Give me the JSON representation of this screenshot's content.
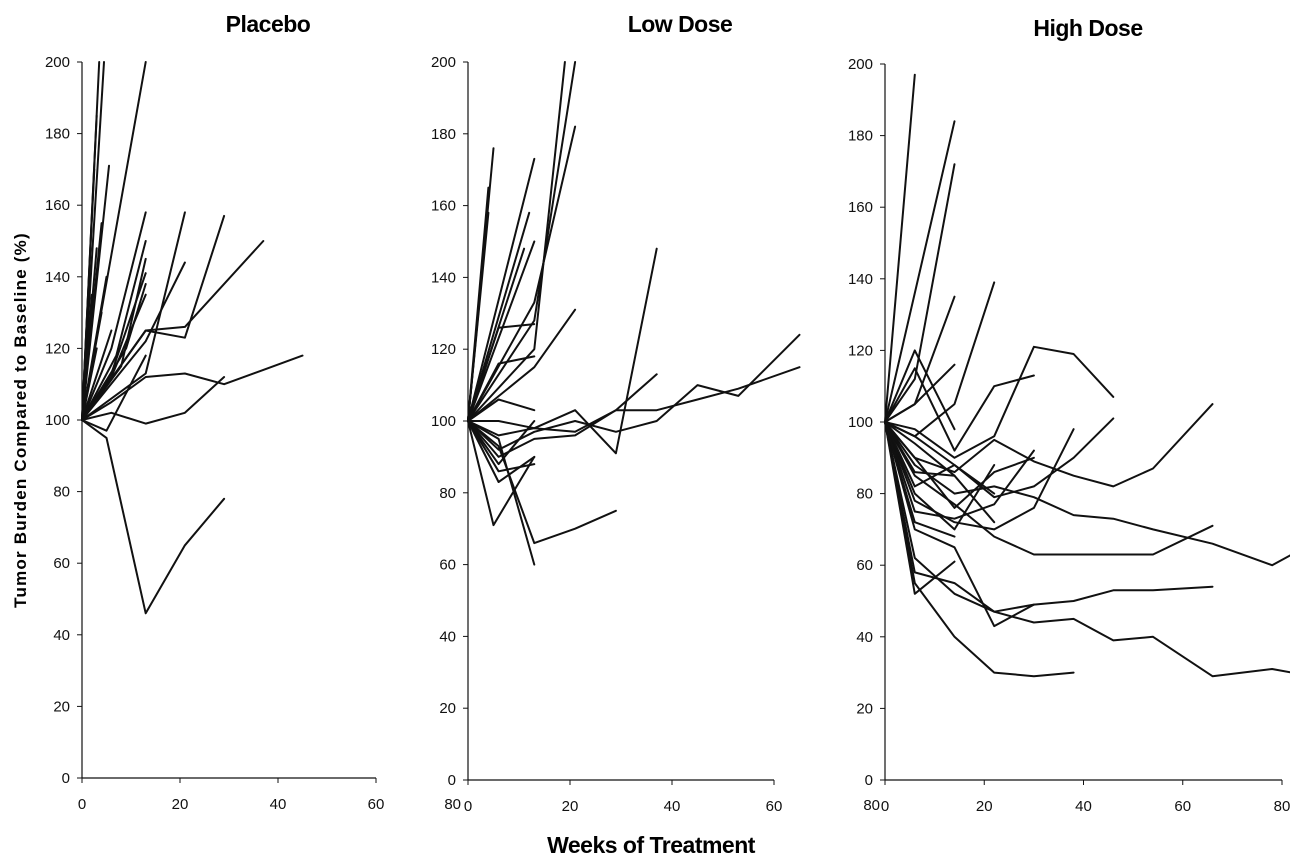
{
  "chart_data": [
    {
      "type": "line",
      "title": "Placebo",
      "ylabel": "Tumor Burden Compared to Baseline (%)",
      "xlim": [
        0,
        60
      ],
      "ylim": [
        0,
        200
      ],
      "x_ticks": [
        "0",
        "20",
        "40",
        "60"
      ],
      "y_ticks": [
        "0",
        "20",
        "40",
        "60",
        "80",
        "100",
        "120",
        "140",
        "160",
        "180",
        "200"
      ],
      "grid": false,
      "series": [
        {
          "x": [
            0,
            3.5
          ],
          "y": [
            100,
            200
          ]
        },
        {
          "x": [
            0,
            4.5
          ],
          "y": [
            100,
            200
          ]
        },
        {
          "x": [
            0,
            3
          ],
          "y": [
            100,
            185
          ]
        },
        {
          "x": [
            0,
            2.5
          ],
          "y": [
            100,
            170
          ]
        },
        {
          "x": [
            0,
            13
          ],
          "y": [
            100,
            200
          ]
        },
        {
          "x": [
            0,
            5.5
          ],
          "y": [
            100,
            171
          ]
        },
        {
          "x": [
            0,
            4
          ],
          "y": [
            100,
            155
          ]
        },
        {
          "x": [
            0,
            3
          ],
          "y": [
            100,
            148
          ]
        },
        {
          "x": [
            0,
            5
          ],
          "y": [
            100,
            140
          ]
        },
        {
          "x": [
            0,
            2
          ],
          "y": [
            100,
            135
          ]
        },
        {
          "x": [
            0,
            4
          ],
          "y": [
            100,
            130
          ]
        },
        {
          "x": [
            0,
            6
          ],
          "y": [
            100,
            125
          ]
        },
        {
          "x": [
            0,
            3
          ],
          "y": [
            100,
            120
          ]
        },
        {
          "x": [
            0,
            2
          ],
          "y": [
            100,
            115
          ]
        },
        {
          "x": [
            0,
            5
          ],
          "y": [
            100,
            110
          ]
        },
        {
          "x": [
            0,
            6,
            13
          ],
          "y": [
            100,
            120,
            158
          ]
        },
        {
          "x": [
            0,
            7,
            13
          ],
          "y": [
            100,
            118,
            150
          ]
        },
        {
          "x": [
            0,
            8,
            13
          ],
          "y": [
            100,
            115,
            145
          ]
        },
        {
          "x": [
            0,
            6,
            13
          ],
          "y": [
            100,
            113,
            141
          ]
        },
        {
          "x": [
            0,
            9,
            13
          ],
          "y": [
            100,
            120,
            138
          ]
        },
        {
          "x": [
            0,
            6,
            13
          ],
          "y": [
            100,
            112,
            135
          ]
        },
        {
          "x": [
            0,
            13,
            21
          ],
          "y": [
            100,
            113,
            158
          ]
        },
        {
          "x": [
            0,
            13,
            21
          ],
          "y": [
            100,
            122,
            144
          ]
        },
        {
          "x": [
            0,
            13,
            21,
            29
          ],
          "y": [
            100,
            125,
            123,
            157
          ]
        },
        {
          "x": [
            0,
            13,
            21,
            37
          ],
          "y": [
            100,
            125,
            126,
            150
          ]
        },
        {
          "x": [
            0,
            6,
            13,
            21,
            29,
            37,
            45
          ],
          "y": [
            100,
            105,
            112,
            113,
            110,
            114,
            118
          ]
        },
        {
          "x": [
            0,
            6,
            13,
            21,
            29
          ],
          "y": [
            100,
            102,
            99,
            102,
            112
          ]
        },
        {
          "x": [
            0,
            5,
            13,
            21,
            29
          ],
          "y": [
            100,
            95,
            46,
            65,
            78
          ]
        },
        {
          "x": [
            0,
            5,
            13
          ],
          "y": [
            100,
            97,
            118
          ]
        }
      ]
    },
    {
      "type": "line",
      "title": "Low Dose",
      "xlim": [
        0,
        60
      ],
      "ylim": [
        0,
        200
      ],
      "x_ticks": [
        "0",
        "20",
        "40",
        "60"
      ],
      "y_ticks": [
        "0",
        "20",
        "40",
        "60",
        "80",
        "100",
        "120",
        "140",
        "160",
        "180",
        "200"
      ],
      "grid": false,
      "series": [
        {
          "x": [
            0,
            5
          ],
          "y": [
            100,
            176
          ]
        },
        {
          "x": [
            0,
            4
          ],
          "y": [
            100,
            165
          ]
        },
        {
          "x": [
            0,
            4
          ],
          "y": [
            100,
            158
          ]
        },
        {
          "x": [
            0,
            3
          ],
          "y": [
            100,
            145
          ]
        },
        {
          "x": [
            0,
            2
          ],
          "y": [
            100,
            130
          ]
        },
        {
          "x": [
            0,
            13
          ],
          "y": [
            100,
            173
          ]
        },
        {
          "x": [
            0,
            12
          ],
          "y": [
            100,
            158
          ]
        },
        {
          "x": [
            0,
            11
          ],
          "y": [
            100,
            148
          ]
        },
        {
          "x": [
            0,
            13
          ],
          "y": [
            100,
            150
          ]
        },
        {
          "x": [
            0,
            13,
            19
          ],
          "y": [
            100,
            120,
            200
          ]
        },
        {
          "x": [
            0,
            13,
            21
          ],
          "y": [
            100,
            128,
            200
          ]
        },
        {
          "x": [
            0,
            13,
            21
          ],
          "y": [
            100,
            133,
            182
          ]
        },
        {
          "x": [
            0,
            6,
            13
          ],
          "y": [
            100,
            126,
            127
          ]
        },
        {
          "x": [
            0,
            6,
            13
          ],
          "y": [
            100,
            116,
            118
          ]
        },
        {
          "x": [
            0,
            13,
            21
          ],
          "y": [
            100,
            115,
            131
          ]
        },
        {
          "x": [
            0,
            6,
            13
          ],
          "y": [
            100,
            106,
            103
          ]
        },
        {
          "x": [
            0,
            6,
            13,
            21,
            29,
            37
          ],
          "y": [
            100,
            90,
            95,
            96,
            103,
            113
          ]
        },
        {
          "x": [
            0,
            6,
            13,
            21,
            29,
            37
          ],
          "y": [
            100,
            100,
            98,
            103,
            91,
            148
          ]
        },
        {
          "x": [
            0,
            6,
            13,
            21,
            29,
            37,
            45,
            53,
            65
          ],
          "y": [
            100,
            96,
            98,
            97,
            103,
            103,
            106,
            109,
            115
          ]
        },
        {
          "x": [
            0,
            6,
            13,
            21,
            29,
            37,
            45,
            53,
            65
          ],
          "y": [
            100,
            92,
            97,
            100,
            97,
            100,
            110,
            107,
            124
          ]
        },
        {
          "x": [
            0,
            6,
            13
          ],
          "y": [
            100,
            88,
            100
          ]
        },
        {
          "x": [
            0,
            6,
            13
          ],
          "y": [
            100,
            86,
            88
          ]
        },
        {
          "x": [
            0,
            6,
            13
          ],
          "y": [
            100,
            83,
            90
          ]
        },
        {
          "x": [
            0,
            5,
            13
          ],
          "y": [
            100,
            71,
            90
          ]
        },
        {
          "x": [
            0,
            6,
            13,
            21,
            29
          ],
          "y": [
            100,
            93,
            66,
            70,
            75
          ]
        },
        {
          "x": [
            0,
            6,
            13
          ],
          "y": [
            100,
            95,
            60
          ]
        }
      ]
    },
    {
      "type": "line",
      "title": "High Dose",
      "xlim": [
        0,
        80
      ],
      "ylim": [
        0,
        200
      ],
      "x_ticks": [
        "0",
        "20",
        "40",
        "60",
        "80"
      ],
      "y_ticks": [
        "0",
        "20",
        "40",
        "60",
        "80",
        "100",
        "120",
        "140",
        "160",
        "180",
        "200"
      ],
      "grid": false,
      "series": [
        {
          "x": [
            0,
            6
          ],
          "y": [
            100,
            197
          ]
        },
        {
          "x": [
            0,
            14
          ],
          "y": [
            100,
            184
          ]
        },
        {
          "x": [
            0,
            6,
            14
          ],
          "y": [
            100,
            112,
            172
          ]
        },
        {
          "x": [
            0,
            6,
            14
          ],
          "y": [
            100,
            105,
            135
          ]
        },
        {
          "x": [
            0,
            6,
            14,
            22
          ],
          "y": [
            100,
            96,
            105,
            139
          ]
        },
        {
          "x": [
            0,
            6,
            14
          ],
          "y": [
            100,
            120,
            98
          ]
        },
        {
          "x": [
            0,
            6,
            14,
            22,
            30
          ],
          "y": [
            100,
            115,
            92,
            110,
            113
          ]
        },
        {
          "x": [
            0,
            6,
            14
          ],
          "y": [
            100,
            105,
            116
          ]
        },
        {
          "x": [
            0,
            6,
            14,
            22,
            30,
            38,
            46
          ],
          "y": [
            100,
            98,
            90,
            96,
            121,
            119,
            107
          ]
        },
        {
          "x": [
            0,
            6,
            14,
            22,
            30,
            38,
            46
          ],
          "y": [
            100,
            96,
            88,
            79,
            82,
            90,
            101
          ]
        },
        {
          "x": [
            0,
            6,
            14,
            22,
            30,
            38,
            46,
            54,
            66
          ],
          "y": [
            100,
            90,
            86,
            95,
            89,
            85,
            82,
            87,
            105
          ]
        },
        {
          "x": [
            0,
            6,
            14,
            22,
            30,
            38,
            46,
            54,
            66,
            78,
            82
          ],
          "y": [
            100,
            88,
            80,
            82,
            79,
            74,
            73,
            70,
            66,
            60,
            63
          ]
        },
        {
          "x": [
            0,
            6,
            14,
            22,
            30,
            38,
            46,
            54,
            66
          ],
          "y": [
            100,
            85,
            77,
            68,
            63,
            63,
            63,
            63,
            71
          ]
        },
        {
          "x": [
            0,
            6,
            14,
            22,
            30,
            38,
            46,
            54,
            66
          ],
          "y": [
            100,
            58,
            55,
            47,
            49,
            50,
            53,
            53,
            54
          ]
        },
        {
          "x": [
            0,
            6,
            14,
            22,
            30,
            38,
            46,
            54,
            66,
            78,
            82
          ],
          "y": [
            100,
            62,
            52,
            47,
            44,
            45,
            39,
            40,
            29,
            31,
            30
          ]
        },
        {
          "x": [
            0,
            6,
            14,
            22,
            30,
            38
          ],
          "y": [
            100,
            55,
            40,
            30,
            29,
            30
          ]
        },
        {
          "x": [
            0,
            6,
            14
          ],
          "y": [
            100,
            52,
            61
          ]
        },
        {
          "x": [
            0,
            6,
            14,
            22,
            30
          ],
          "y": [
            100,
            70,
            65,
            43,
            49
          ]
        },
        {
          "x": [
            0,
            6,
            14,
            22,
            30,
            38
          ],
          "y": [
            100,
            78,
            72,
            70,
            76,
            98
          ]
        },
        {
          "x": [
            0,
            6,
            14,
            22,
            30
          ],
          "y": [
            100,
            75,
            73,
            77,
            92
          ]
        },
        {
          "x": [
            0,
            6,
            14,
            22
          ],
          "y": [
            100,
            80,
            70,
            88
          ]
        },
        {
          "x": [
            0,
            6,
            14,
            22
          ],
          "y": [
            100,
            86,
            85,
            72
          ]
        },
        {
          "x": [
            0,
            6,
            14,
            22,
            30
          ],
          "y": [
            100,
            90,
            76,
            86,
            90
          ]
        },
        {
          "x": [
            0,
            6,
            14
          ],
          "y": [
            100,
            72,
            68
          ]
        },
        {
          "x": [
            0,
            6,
            14,
            22
          ],
          "y": [
            100,
            82,
            88,
            80
          ]
        },
        {
          "x": [
            0,
            6,
            14
          ],
          "y": [
            100,
            94,
            85
          ]
        }
      ]
    }
  ],
  "figure": {
    "xlabel": "Weeks of Treatment",
    "stray_left_tick_panel2": "80",
    "stray_left_tick_panel3": "80"
  },
  "colors": {
    "line": "#111111",
    "background": "#ffffff"
  }
}
